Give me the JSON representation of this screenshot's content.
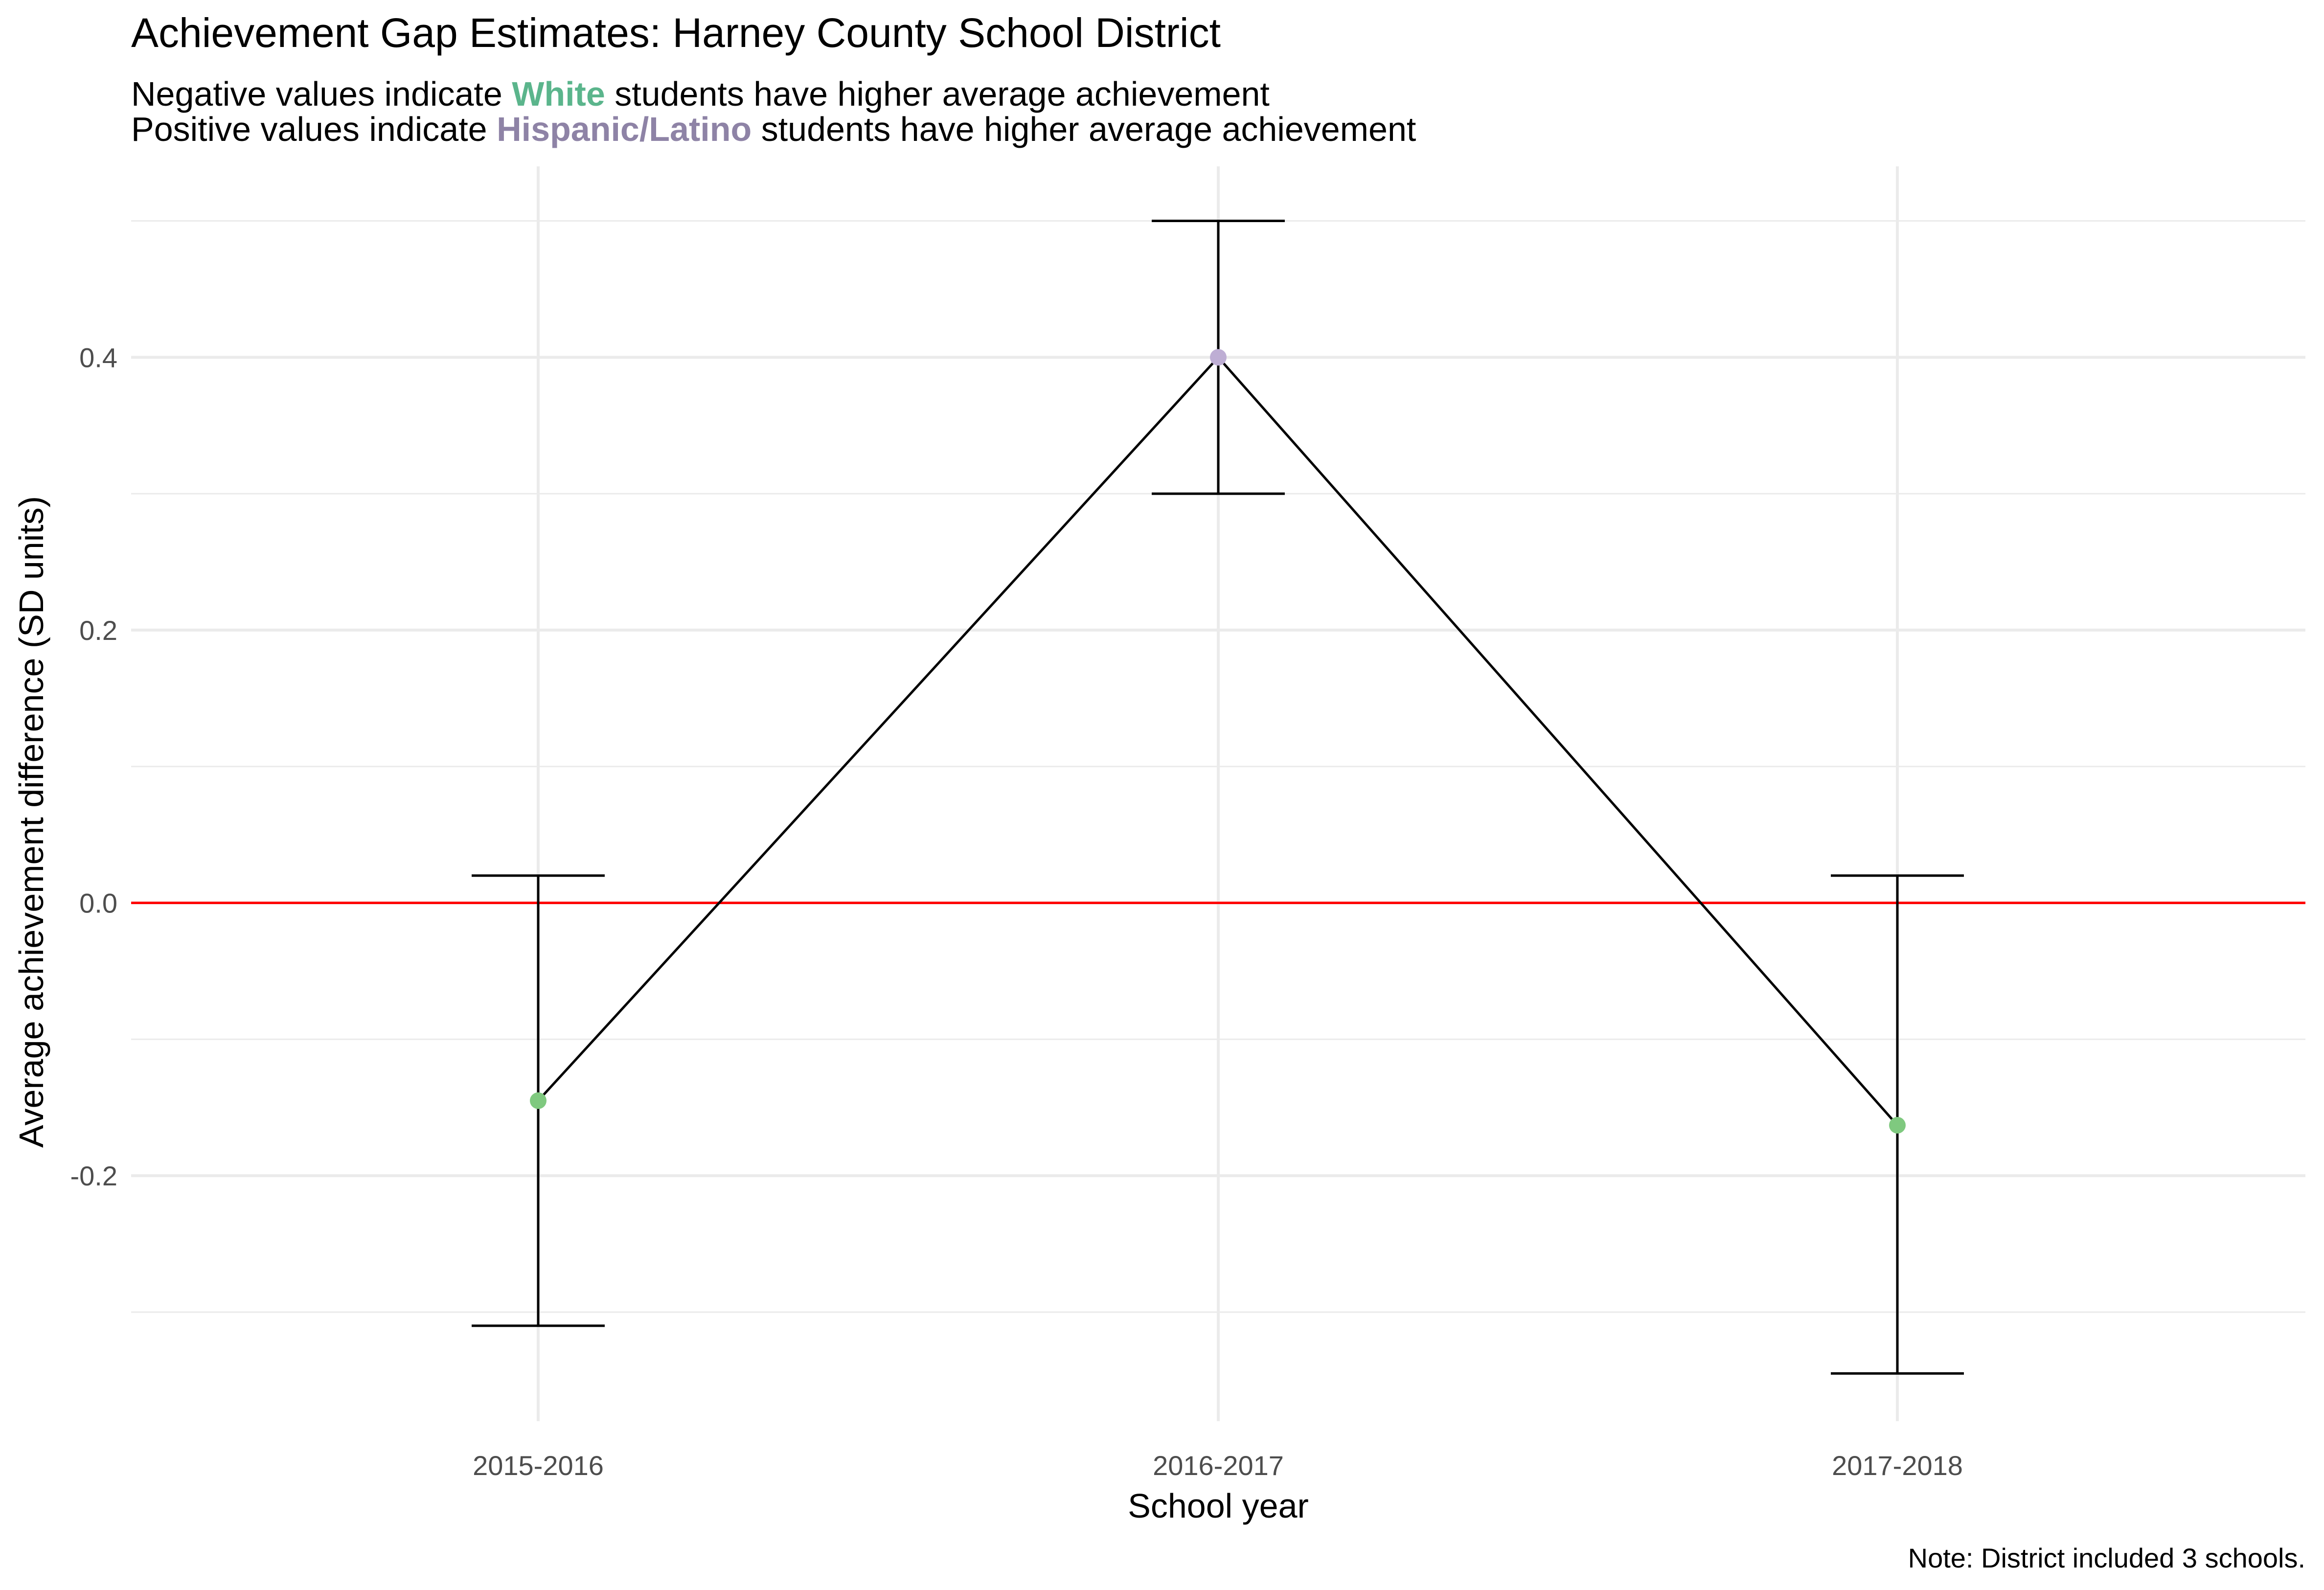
{
  "chart_data": {
    "type": "line",
    "title": "Achievement Gap Estimates: Harney County School District",
    "subtitle_line1": {
      "before": "Negative values indicate ",
      "highlight": "White",
      "after": " students have higher average achievement"
    },
    "subtitle_line2": {
      "before": "Positive values indicate ",
      "highlight": "Hispanic/Latino",
      "after": " students have higher average achievement"
    },
    "xlabel": "School year",
    "ylabel": "Average achievement difference (SD units)",
    "caption": "Note: District included 3 schools.",
    "categories": [
      "2015-2016",
      "2016-2017",
      "2017-2018"
    ],
    "values": [
      -0.145,
      0.4,
      -0.163
    ],
    "error_lower": [
      -0.31,
      0.3,
      -0.345
    ],
    "error_upper": [
      0.02,
      0.5,
      0.02
    ],
    "point_colors": [
      "#7fc97f",
      "#beaed4",
      "#7fc97f"
    ],
    "ylim": [
      -0.38,
      0.54
    ],
    "yticks": [
      -0.2,
      0.0,
      0.2,
      0.4
    ],
    "ytick_labels": [
      "-0.2",
      "0.0",
      "0.2",
      "0.4"
    ],
    "reference_line": {
      "y": 0,
      "color": "#ff0000"
    },
    "grid": true,
    "colors": {
      "white_highlight": "#5bb58c",
      "latino_highlight": "#8e83a6",
      "line": "#000000",
      "grid": "#ebebeb"
    }
  }
}
